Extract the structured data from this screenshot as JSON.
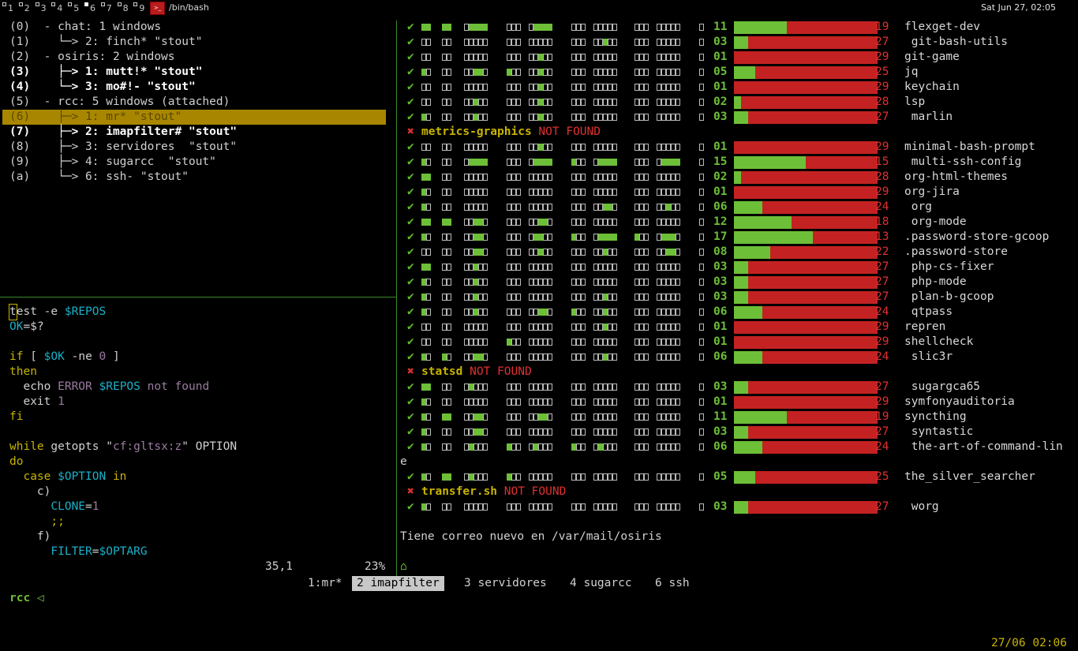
{
  "topbar": {
    "workspaces": [
      "1",
      "2",
      "3",
      "4",
      "5",
      "6",
      "7",
      "8",
      "9"
    ],
    "active_workspace": "6",
    "window_title": "/bin/bash",
    "clock": "Sat Jun 27, 02:05"
  },
  "tree": [
    {
      "text": "(0)  - chat: 1 windows",
      "style": "normal"
    },
    {
      "text": "(1)    └─> 2: finch* \"stout\"",
      "style": "normal"
    },
    {
      "text": "(2)  - osiris: 2 windows",
      "style": "normal"
    },
    {
      "text": "(3)    ├─> 1: mutt!* \"stout\"",
      "style": "bold"
    },
    {
      "text": "(4)    └─> 3: mo#!- \"stout\"",
      "style": "bold"
    },
    {
      "text": "(5)  - rcc: 5 windows (attached)",
      "style": "normal"
    },
    {
      "text": "(6)    ├─> 1: mr* \"stout\"",
      "style": "selected"
    },
    {
      "text": "(7)    ├─> 2: imapfilter# \"stout\"",
      "style": "bold"
    },
    {
      "text": "(8)    ├─> 3: servidores  \"stout\"",
      "style": "normal"
    },
    {
      "text": "(9)    ├─> 4: sugarcc  \"stout\"",
      "style": "normal"
    },
    {
      "text": "(a)    └─> 6: ssh- \"stout\"",
      "style": "normal"
    }
  ],
  "vim": {
    "lines": [
      [
        [
          "test",
          "cmd"
        ],
        [
          " -e ",
          "cmd"
        ],
        [
          "$REPOS",
          "var"
        ]
      ],
      [
        [
          "OK",
          "var"
        ],
        [
          "=$?",
          "cmd"
        ]
      ],
      [],
      [
        [
          "if",
          "kw"
        ],
        [
          " [ ",
          "cmd"
        ],
        [
          "$OK",
          "var"
        ],
        [
          " -ne ",
          "cmd"
        ],
        [
          "0",
          "num"
        ],
        [
          " ]",
          "cmd"
        ]
      ],
      [
        [
          "then",
          "kw"
        ]
      ],
      [
        [
          "  echo ",
          "cmd"
        ],
        [
          "ERROR ",
          "str"
        ],
        [
          "$REPOS",
          "var"
        ],
        [
          " not found",
          "str"
        ]
      ],
      [
        [
          "  exit ",
          "cmd"
        ],
        [
          "1",
          "num"
        ]
      ],
      [
        [
          "fi",
          "kw"
        ]
      ],
      [],
      [
        [
          "while",
          "kw"
        ],
        [
          " getopts ",
          "cmd"
        ],
        [
          "\"",
          "cmd"
        ],
        [
          "cf:gltsx:z",
          "str"
        ],
        [
          "\"",
          "cmd"
        ],
        [
          " OPTION",
          "cmd"
        ]
      ],
      [
        [
          "do",
          "kw"
        ]
      ],
      [
        [
          "  case ",
          "kw"
        ],
        [
          "$OPTION",
          "var"
        ],
        [
          " in",
          "kw"
        ]
      ],
      [
        [
          "    c)",
          "cmd"
        ]
      ],
      [
        [
          "      CLONE",
          "var"
        ],
        [
          "=",
          "cmd"
        ],
        [
          "1",
          "num"
        ]
      ],
      [
        [
          "      ;;",
          "kw"
        ]
      ],
      [
        [
          "    f)",
          "cmd"
        ]
      ],
      [
        [
          "      FILTER",
          "var"
        ],
        [
          "=",
          "cmd"
        ],
        [
          "$OPTARG",
          "var"
        ]
      ]
    ],
    "ruler_pos": "35,1",
    "ruler_pct": "23%"
  },
  "repos": [
    {
      "kind": "ok",
      "cells": [
        2,
        2,
        "1*4",
        0,
        "1*4",
        0,
        0,
        0,
        0,
        0
      ],
      "total": "11",
      "fill": 0.37,
      "rem": "19",
      "name": "flexget-dev"
    },
    {
      "kind": "ok",
      "cells": [
        0,
        0,
        0,
        0,
        0,
        0,
        "3:1",
        0,
        0,
        0
      ],
      "total": "03",
      "fill": 0.1,
      "rem": "27",
      "name": " git-bash-utils"
    },
    {
      "kind": "ok",
      "cells": [
        0,
        0,
        0,
        0,
        "3:1",
        0,
        0,
        0,
        0,
        0
      ],
      "total": "01",
      "fill": 0.0,
      "rem": "29",
      "name": "git-game"
    },
    {
      "kind": "ok",
      "cells": [
        1,
        0,
        "3:2",
        1,
        "3:1",
        0,
        0,
        0,
        0,
        0
      ],
      "total": "05",
      "fill": 0.15,
      "rem": "25",
      "name": "jq"
    },
    {
      "kind": "ok",
      "cells": [
        0,
        0,
        0,
        0,
        "3:1",
        0,
        0,
        0,
        0,
        0
      ],
      "total": "01",
      "fill": 0.0,
      "rem": "29",
      "name": "keychain"
    },
    {
      "kind": "ok",
      "cells": [
        0,
        0,
        "3:1",
        0,
        "3:1",
        0,
        0,
        0,
        0,
        0
      ],
      "total": "02",
      "fill": 0.05,
      "rem": "28",
      "name": "lsp"
    },
    {
      "kind": "ok",
      "cells": [
        1,
        0,
        "3:1",
        0,
        "3:1",
        0,
        0,
        0,
        0,
        0
      ],
      "total": "03",
      "fill": 0.1,
      "rem": "27",
      "name": " marlin"
    },
    {
      "kind": "nf",
      "name": "metrics-graphics",
      "msg": "NOT FOUND"
    },
    {
      "kind": "ok",
      "cells": [
        0,
        0,
        0,
        0,
        "3:1",
        0,
        0,
        0,
        0,
        0
      ],
      "total": "01",
      "fill": 0.0,
      "rem": "29",
      "name": "minimal-bash-prompt"
    },
    {
      "kind": "ok",
      "cells": [
        1,
        0,
        "1*4",
        0,
        "1*4",
        1,
        "1*4",
        0,
        "1*4",
        0
      ],
      "total": "15",
      "fill": 0.5,
      "rem": "15",
      "name": " multi-ssh-config"
    },
    {
      "kind": "ok",
      "cells": [
        2,
        0,
        0,
        0,
        0,
        0,
        0,
        0,
        0,
        0
      ],
      "total": "02",
      "fill": 0.05,
      "rem": "28",
      "name": "org-html-themes"
    },
    {
      "kind": "ok",
      "cells": [
        1,
        0,
        0,
        0,
        0,
        0,
        0,
        0,
        0,
        0
      ],
      "total": "01",
      "fill": 0.0,
      "rem": "29",
      "name": "org-jira"
    },
    {
      "kind": "ok",
      "cells": [
        1,
        0,
        0,
        0,
        0,
        0,
        "3:2",
        0,
        "3:1",
        0
      ],
      "total": "06",
      "fill": 0.2,
      "rem": "24",
      "name": " org"
    },
    {
      "kind": "ok",
      "cells": [
        2,
        2,
        "2*2",
        0,
        "2*2",
        0,
        0,
        0,
        0,
        0
      ],
      "total": "12",
      "fill": 0.4,
      "rem": "18",
      "name": " org-mode"
    },
    {
      "kind": "ok",
      "cells": [
        1,
        0,
        "2*2",
        0,
        "1*2",
        1,
        "1*4",
        1,
        "1*3",
        0
      ],
      "total": "17",
      "fill": 0.55,
      "rem": "13",
      "name": ".password-store-gcoop"
    },
    {
      "kind": "ok",
      "cells": [
        0,
        0,
        "3:2",
        0,
        "3:1",
        0,
        "3:1",
        0,
        "3:2",
        0
      ],
      "total": "08",
      "fill": 0.25,
      "rem": "22",
      "name": ".password-store"
    },
    {
      "kind": "ok",
      "cells": [
        2,
        0,
        "3:1",
        0,
        0,
        0,
        0,
        0,
        0,
        0
      ],
      "total": "03",
      "fill": 0.1,
      "rem": "27",
      "name": " php-cs-fixer"
    },
    {
      "kind": "ok",
      "cells": [
        1,
        0,
        "3:1",
        0,
        0,
        0,
        0,
        0,
        0,
        0
      ],
      "total": "03",
      "fill": 0.1,
      "rem": "27",
      "name": " php-mode"
    },
    {
      "kind": "ok",
      "cells": [
        1,
        0,
        "3:1",
        0,
        0,
        0,
        "3:1",
        0,
        0,
        0
      ],
      "total": "03",
      "fill": 0.1,
      "rem": "27",
      "name": " plan-b-gcoop"
    },
    {
      "kind": "ok",
      "cells": [
        1,
        0,
        "3:1",
        0,
        "3:2",
        1,
        "3:1",
        0,
        0,
        0
      ],
      "total": "06",
      "fill": 0.2,
      "rem": "24",
      "name": " qtpass"
    },
    {
      "kind": "ok",
      "cells": [
        0,
        0,
        0,
        0,
        0,
        0,
        "3:1",
        0,
        0,
        0
      ],
      "total": "01",
      "fill": 0.0,
      "rem": "29",
      "name": "repren"
    },
    {
      "kind": "ok",
      "cells": [
        0,
        0,
        0,
        1,
        0,
        0,
        0,
        0,
        0,
        0
      ],
      "total": "01",
      "fill": 0.0,
      "rem": "29",
      "name": "shellcheck"
    },
    {
      "kind": "ok",
      "cells": [
        1,
        1,
        "2*2",
        0,
        0,
        0,
        "3:1",
        0,
        0,
        0
      ],
      "total": "06",
      "fill": 0.2,
      "rem": "24",
      "name": " slic3r"
    },
    {
      "kind": "nf",
      "name": "statsd",
      "msg": "NOT FOUND"
    },
    {
      "kind": "ok",
      "cells": [
        2,
        0,
        "1*1",
        0,
        0,
        0,
        0,
        0,
        0,
        0
      ],
      "total": "03",
      "fill": 0.1,
      "rem": "27",
      "name": " sugargca65"
    },
    {
      "kind": "ok",
      "cells": [
        1,
        0,
        0,
        0,
        0,
        0,
        0,
        0,
        0,
        0
      ],
      "total": "01",
      "fill": 0.0,
      "rem": "29",
      "name": "symfonyauditoria"
    },
    {
      "kind": "ok",
      "cells": [
        1,
        2,
        "2*2",
        0,
        "2*2",
        0,
        0,
        0,
        0,
        0
      ],
      "total": "11",
      "fill": 0.37,
      "rem": "19",
      "name": "syncthing"
    },
    {
      "kind": "ok",
      "cells": [
        1,
        0,
        "3:2",
        0,
        0,
        0,
        0,
        0,
        0,
        0
      ],
      "total": "03",
      "fill": 0.1,
      "rem": "27",
      "name": " syntastic"
    },
    {
      "kind": "ok",
      "cells": [
        1,
        0,
        "1*1",
        1,
        "1*1",
        1,
        "1*1",
        0,
        0,
        0
      ],
      "total": "06",
      "fill": 0.2,
      "rem": "24",
      "name": " the-art-of-command-lin"
    },
    {
      "kind": "wrap",
      "text": "e"
    },
    {
      "kind": "ok",
      "cells": [
        1,
        2,
        "1*1",
        1,
        0,
        0,
        0,
        0,
        0,
        0
      ],
      "total": "05",
      "fill": 0.15,
      "rem": "25",
      "name": "the_silver_searcher"
    },
    {
      "kind": "nf",
      "name": "transfer.sh",
      "msg": "NOT FOUND"
    },
    {
      "kind": "ok",
      "cells": [
        1,
        0,
        0,
        0,
        0,
        0,
        0,
        0,
        0,
        0
      ],
      "total": "03",
      "fill": 0.1,
      "rem": "27",
      "name": " worg"
    }
  ],
  "mail_notice": "Tiene correo nuevo en /var/mail/osiris",
  "prompt_glyph": "⌂",
  "statusbar": {
    "session": "rcc ◁",
    "windows": [
      {
        "label": "1:mr*",
        "active": false
      },
      {
        "label": "2 imapfilter",
        "active": true
      },
      {
        "label": "3 servidores",
        "active": false
      },
      {
        "label": "4 sugarcc",
        "active": false
      },
      {
        "label": "6 ssh",
        "active": false
      }
    ],
    "datetime": "27/06 02:06"
  },
  "colors": {
    "green": "#6dbf38",
    "red": "#c42222",
    "yellow": "#c8b400",
    "selection": "#a98600"
  }
}
